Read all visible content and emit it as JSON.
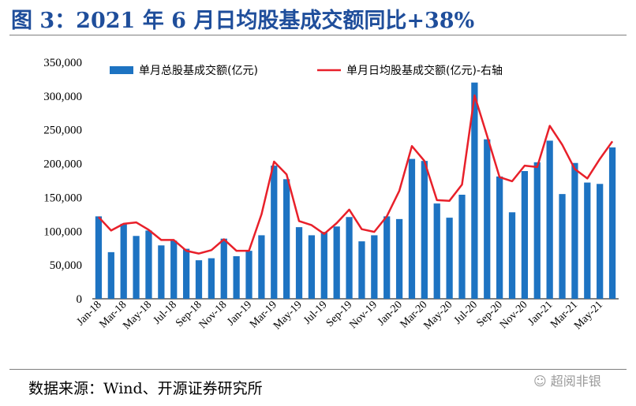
{
  "figure": {
    "title": "图 3：2021 年 6 月日均股基成交额同比+38%",
    "source": "数据来源：Wind、开源证券研究所",
    "watermark": "超阅非银"
  },
  "colors": {
    "bar": "#1d73c2",
    "line": "#e8202a",
    "title": "#1f4e9b"
  },
  "chart_data": {
    "type": "bar",
    "title": "",
    "xlabel": "",
    "ylabel": "",
    "ylim": [
      0,
      350000
    ],
    "yticks": [
      0,
      50000,
      100000,
      150000,
      200000,
      250000,
      300000,
      350000
    ],
    "ytick_labels": [
      "0",
      "50,000",
      "100,000",
      "150,000",
      "200,000",
      "250,000",
      "300,000",
      "350,000"
    ],
    "legend_position": "top",
    "categories": [
      "Jan-18",
      "Feb-18",
      "Mar-18",
      "Apr-18",
      "May-18",
      "Jun-18",
      "Jul-18",
      "Aug-18",
      "Sep-18",
      "Oct-18",
      "Nov-18",
      "Dec-18",
      "Jan-19",
      "Feb-19",
      "Mar-19",
      "Apr-19",
      "May-19",
      "Jun-19",
      "Jul-19",
      "Aug-19",
      "Sep-19",
      "Oct-19",
      "Nov-19",
      "Dec-19",
      "Jan-20",
      "Feb-20",
      "Mar-20",
      "Apr-20",
      "May-20",
      "Jun-20",
      "Jul-20",
      "Aug-20",
      "Sep-20",
      "Oct-20",
      "Nov-20",
      "Dec-20",
      "Jan-21",
      "Feb-21",
      "Mar-21",
      "Apr-21",
      "May-21",
      "Jun-21"
    ],
    "xtick_labels": [
      "Jan-18",
      "Mar-18",
      "May-18",
      "Jul-18",
      "Sep-18",
      "Nov-18",
      "Jan-19",
      "Mar-19",
      "May-19",
      "Jul-19",
      "Sep-19",
      "Nov-19",
      "Jan-20",
      "Mar-20",
      "May-20",
      "Jul-20",
      "Sep-20",
      "Nov-20",
      "Jan-21",
      "Mar-21",
      "May-21"
    ],
    "series": [
      {
        "name": "单月总股基成交额(亿元)",
        "type": "bar",
        "axis": "left",
        "values": [
          122000,
          69000,
          111000,
          93000,
          101000,
          79000,
          86000,
          74000,
          57000,
          60000,
          89000,
          63000,
          71000,
          94000,
          197000,
          177000,
          106000,
          94000,
          99000,
          107000,
          121000,
          85000,
          94000,
          122000,
          118000,
          207000,
          204000,
          141000,
          120000,
          154000,
          320000,
          236000,
          181000,
          128000,
          189000,
          202000,
          234000,
          155000,
          201000,
          172000,
          170000,
          224000
        ]
      },
      {
        "name": "单月日均股基成交额(亿元)-右轴",
        "type": "line",
        "axis": "right",
        "values": [
          121000,
          101000,
          111000,
          113000,
          102000,
          87000,
          87000,
          71000,
          67000,
          72000,
          88000,
          71000,
          71000,
          125000,
          203000,
          184000,
          115000,
          109000,
          96000,
          112000,
          132000,
          103000,
          99000,
          122000,
          160000,
          226000,
          204000,
          146000,
          145000,
          169000,
          301000,
          241000,
          180000,
          174000,
          197000,
          195000,
          256000,
          228000,
          192000,
          178000,
          207000,
          233000
        ]
      }
    ]
  }
}
